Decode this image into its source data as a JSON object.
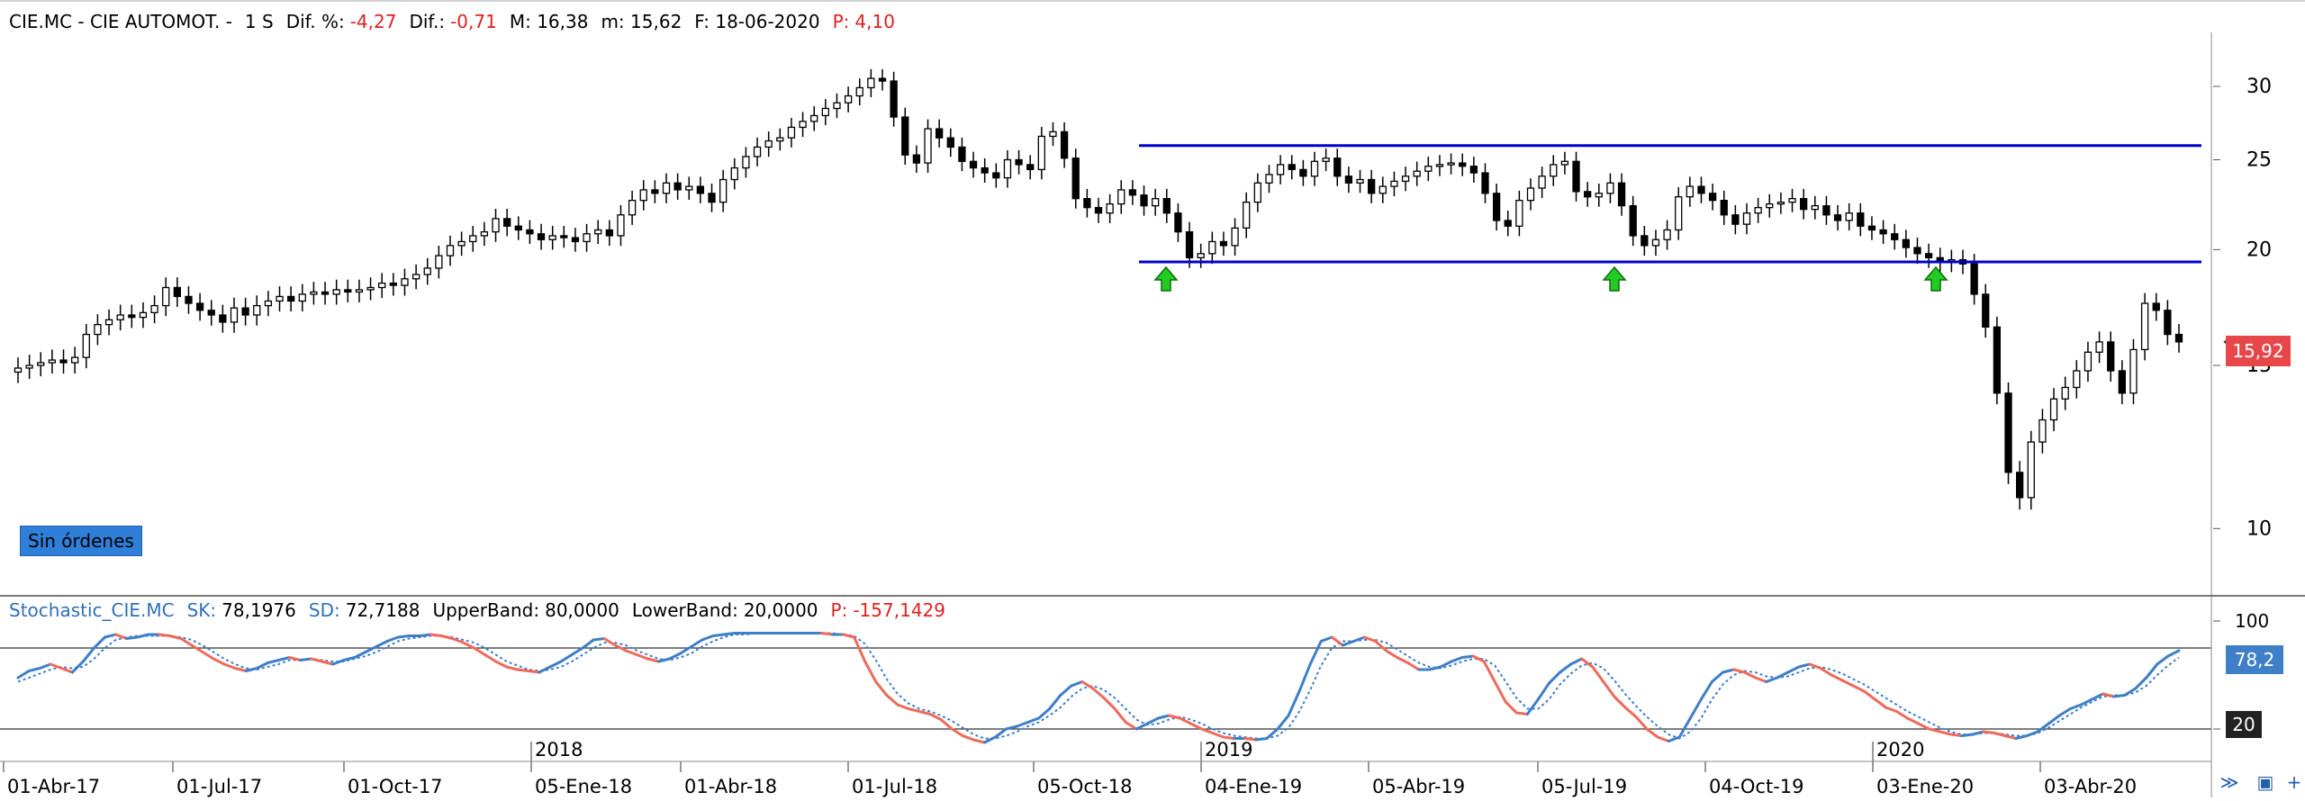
{
  "header": {
    "symbol": "CIE.MC - CIE AUTOMOT. -",
    "period": "1 S",
    "dif_pct_label": "Dif. %:",
    "dif_pct_value": "-4,27",
    "dif_label": "Dif.:",
    "dif_value": "-0,71",
    "max_label": "M: 16,38",
    "min_label": "m: 15,62",
    "date_label": "F: 18-06-2020",
    "p_label": "P:",
    "p_value": "4,10"
  },
  "orders_label": "Sin órdenes",
  "price_tag": "15,92",
  "stoch_header": {
    "name": "Stochastic_CIE.MC",
    "sk_label": "SK:",
    "sk_value": "78,1976",
    "sd_label": "SD:",
    "sd_value": "72,7188",
    "upper_label": "UpperBand:",
    "upper_value": "80,0000",
    "lower_label": "LowerBand:",
    "lower_value": "20,0000",
    "p_label": "P:",
    "p_value": "-157,1429"
  },
  "stoch_tag": "78,2",
  "lower_tag": "20",
  "icons": [
    "zoom-icon",
    "save-icon",
    "add-icon"
  ],
  "colors": {
    "up": "#ffffff",
    "down": "#000000",
    "support": "#0000cc",
    "arrow": "#22cc22",
    "sk_up": "#3f7fc8",
    "sk_down": "#ef6a5a",
    "price_tag": "#e8474a"
  },
  "chart_data": [
    {
      "type": "candlestick",
      "scale": "log",
      "ylim": [
        8.5,
        34
      ],
      "yticks": [
        10,
        15,
        20,
        25,
        30
      ],
      "x_tick_labels": [
        "01-Abr-17",
        "01-Jul-17",
        "01-Oct-17",
        "05-Ene-18",
        "01-Abr-18",
        "01-Jul-18",
        "05-Oct-18",
        "04-Ene-19",
        "05-Abr-19",
        "05-Jul-19",
        "04-Oct-19",
        "03-Ene-20",
        "03-Abr-20"
      ],
      "year_labels": [
        "2018",
        "2019",
        "2020"
      ],
      "weekly_close": [
        14.9,
        15.0,
        15.1,
        15.2,
        15.1,
        15.3,
        16.2,
        16.6,
        16.8,
        17.0,
        16.9,
        17.1,
        17.4,
        18.2,
        17.8,
        17.5,
        17.2,
        17.0,
        16.7,
        17.3,
        17.0,
        17.4,
        17.6,
        17.8,
        17.6,
        17.9,
        18.0,
        17.9,
        18.1,
        18.0,
        18.1,
        18.2,
        18.4,
        18.3,
        18.6,
        18.8,
        19.1,
        19.7,
        20.2,
        20.4,
        20.7,
        20.9,
        21.6,
        21.2,
        21.0,
        20.8,
        20.5,
        20.7,
        20.6,
        20.4,
        20.8,
        21.0,
        20.7,
        21.8,
        22.6,
        23.2,
        23.0,
        23.6,
        23.2,
        23.4,
        23.0,
        22.5,
        23.8,
        24.5,
        25.2,
        25.8,
        26.2,
        26.4,
        27.1,
        27.5,
        27.9,
        28.4,
        28.8,
        29.3,
        29.9,
        30.6,
        30.4,
        27.8,
        25.3,
        24.8,
        27.0,
        26.4,
        25.8,
        24.9,
        24.5,
        24.2,
        23.9,
        25.0,
        24.7,
        24.4,
        26.5,
        26.8,
        25.1,
        22.7,
        22.2,
        21.9,
        22.4,
        23.2,
        22.9,
        22.3,
        22.7,
        21.9,
        20.9,
        19.6,
        19.8,
        20.4,
        20.2,
        21.1,
        22.5,
        23.6,
        24.1,
        24.7,
        24.4,
        24.0,
        24.9,
        25.1,
        24.0,
        23.6,
        23.8,
        23.0,
        23.4,
        23.7,
        24.0,
        24.3,
        24.6,
        24.7,
        24.8,
        24.6,
        24.2,
        23.0,
        21.5,
        21.2,
        22.6,
        23.3,
        24.0,
        24.7,
        24.9,
        23.1,
        22.8,
        23.0,
        23.6,
        22.3,
        20.7,
        20.2,
        20.5,
        21.0,
        22.8,
        23.4,
        23.0,
        22.6,
        21.8,
        21.3,
        21.9,
        22.2,
        22.4,
        22.5,
        22.7,
        22.1,
        22.3,
        21.8,
        21.5,
        21.9,
        21.2,
        21.0,
        20.8,
        20.5,
        20.1,
        19.8,
        19.6,
        19.4,
        19.5,
        19.3,
        17.9,
        16.5,
        14.0,
        11.5,
        10.8,
        12.4,
        13.1,
        13.8,
        14.2,
        14.8,
        15.5,
        15.9,
        14.8,
        14.0,
        15.6,
        17.5,
        17.2,
        16.2,
        15.9
      ]
    },
    {
      "type": "line",
      "ylim": [
        0,
        100
      ],
      "yticks": [
        20,
        100
      ],
      "bands": [
        80,
        20
      ],
      "series": [
        {
          "name": "SK",
          "values": [
            58,
            63,
            65,
            68,
            65,
            62,
            70,
            80,
            88,
            90,
            87,
            88,
            90,
            90,
            89,
            87,
            82,
            77,
            72,
            68,
            65,
            63,
            65,
            69,
            71,
            73,
            71,
            72,
            70,
            68,
            71,
            73,
            77,
            81,
            85,
            88,
            89,
            89,
            90,
            89,
            87,
            84,
            80,
            75,
            70,
            66,
            64,
            63,
            62,
            66,
            70,
            75,
            80,
            86,
            87,
            82,
            78,
            75,
            72,
            70,
            72,
            76,
            81,
            86,
            89,
            90,
            91,
            91,
            91,
            91,
            91,
            91,
            91,
            91,
            91,
            90,
            90,
            88,
            70,
            55,
            45,
            38,
            35,
            33,
            31,
            27,
            20,
            15,
            12,
            10,
            14,
            20,
            22,
            25,
            28,
            35,
            45,
            52,
            55,
            50,
            43,
            35,
            25,
            20,
            24,
            28,
            30,
            28,
            24,
            20,
            17,
            14,
            13,
            13,
            12,
            13,
            20,
            30,
            48,
            68,
            85,
            88,
            82,
            85,
            88,
            85,
            78,
            73,
            69,
            64,
            64,
            66,
            70,
            73,
            74,
            70,
            55,
            40,
            32,
            31,
            42,
            54,
            62,
            68,
            72,
            66,
            55,
            44,
            36,
            29,
            20,
            14,
            11,
            14,
            28,
            42,
            55,
            62,
            64,
            62,
            58,
            55,
            58,
            62,
            66,
            68,
            65,
            60,
            56,
            52,
            48,
            42,
            36,
            33,
            28,
            24,
            20,
            18,
            16,
            15,
            16,
            18,
            17,
            15,
            13,
            15,
            18,
            24,
            30,
            35,
            38,
            42,
            46,
            44,
            45,
            50,
            58,
            68,
            74,
            78
          ]
        },
        {
          "name": "SD",
          "values": [
            55,
            58,
            61,
            64,
            66,
            65,
            66,
            72,
            80,
            86,
            88,
            89,
            89,
            89,
            89,
            88,
            86,
            82,
            77,
            72,
            68,
            65,
            64,
            66,
            68,
            71,
            71,
            72,
            71,
            70,
            70,
            72,
            74,
            77,
            81,
            85,
            87,
            88,
            89,
            89,
            88,
            86,
            84,
            80,
            75,
            70,
            67,
            64,
            63,
            64,
            66,
            70,
            75,
            80,
            84,
            84,
            82,
            78,
            75,
            72,
            71,
            73,
            76,
            81,
            85,
            88,
            90,
            90,
            91,
            91,
            91,
            91,
            91,
            91,
            91,
            91,
            90,
            89,
            83,
            71,
            57,
            46,
            39,
            35,
            33,
            30,
            26,
            21,
            16,
            13,
            13,
            15,
            18,
            22,
            25,
            30,
            36,
            44,
            50,
            52,
            49,
            43,
            35,
            27,
            23,
            24,
            27,
            29,
            27,
            24,
            20,
            17,
            15,
            14,
            13,
            13,
            15,
            21,
            33,
            49,
            67,
            80,
            85,
            85,
            86,
            86,
            84,
            79,
            74,
            69,
            66,
            65,
            67,
            70,
            72,
            72,
            67,
            55,
            43,
            35,
            35,
            42,
            53,
            61,
            67,
            69,
            65,
            56,
            46,
            37,
            29,
            22,
            16,
            13,
            18,
            28,
            42,
            53,
            60,
            63,
            62,
            59,
            58,
            59,
            62,
            65,
            66,
            64,
            61,
            57,
            53,
            48,
            43,
            38,
            33,
            29,
            25,
            21,
            18,
            16,
            16,
            17,
            17,
            16,
            15,
            15,
            17,
            21,
            26,
            31,
            36,
            40,
            44,
            45,
            45,
            47,
            52,
            60,
            67,
            73
          ]
        }
      ]
    }
  ]
}
